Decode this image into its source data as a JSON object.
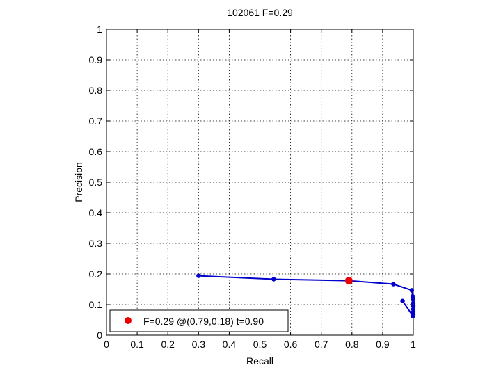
{
  "chart_data": {
    "type": "line",
    "title": "102061 F=0.29",
    "xlabel": "Recall",
    "ylabel": "Precision",
    "xlim": [
      0,
      1
    ],
    "ylim": [
      0,
      1
    ],
    "grid": true,
    "xticks": [
      "0",
      "0.1",
      "0.2",
      "0.3",
      "0.4",
      "0.5",
      "0.6",
      "0.7",
      "0.8",
      "0.9",
      "1"
    ],
    "yticks": [
      "0",
      "0.1",
      "0.2",
      "0.3",
      "0.4",
      "0.5",
      "0.6",
      "0.7",
      "0.8",
      "0.9",
      "1"
    ],
    "series": [
      {
        "color": "#0000cc",
        "points": [
          [
            0.3,
            0.194
          ],
          [
            0.545,
            0.183
          ],
          [
            0.79,
            0.178
          ],
          [
            0.935,
            0.167
          ],
          [
            0.995,
            0.147
          ],
          [
            0.998,
            0.127
          ],
          [
            0.999,
            0.117
          ],
          [
            1.0,
            0.105
          ],
          [
            1.0,
            0.095
          ],
          [
            1.0,
            0.085
          ],
          [
            1.0,
            0.076
          ],
          [
            1.0,
            0.068
          ],
          [
            0.999,
            0.062
          ],
          [
            0.965,
            0.112
          ]
        ]
      }
    ],
    "highlight": {
      "x": 0.79,
      "y": 0.178,
      "color": "#ee0000"
    },
    "legend": {
      "label": "F=0.29 @(0.79,0.18) t=0.90",
      "position": "bottom-left"
    }
  }
}
